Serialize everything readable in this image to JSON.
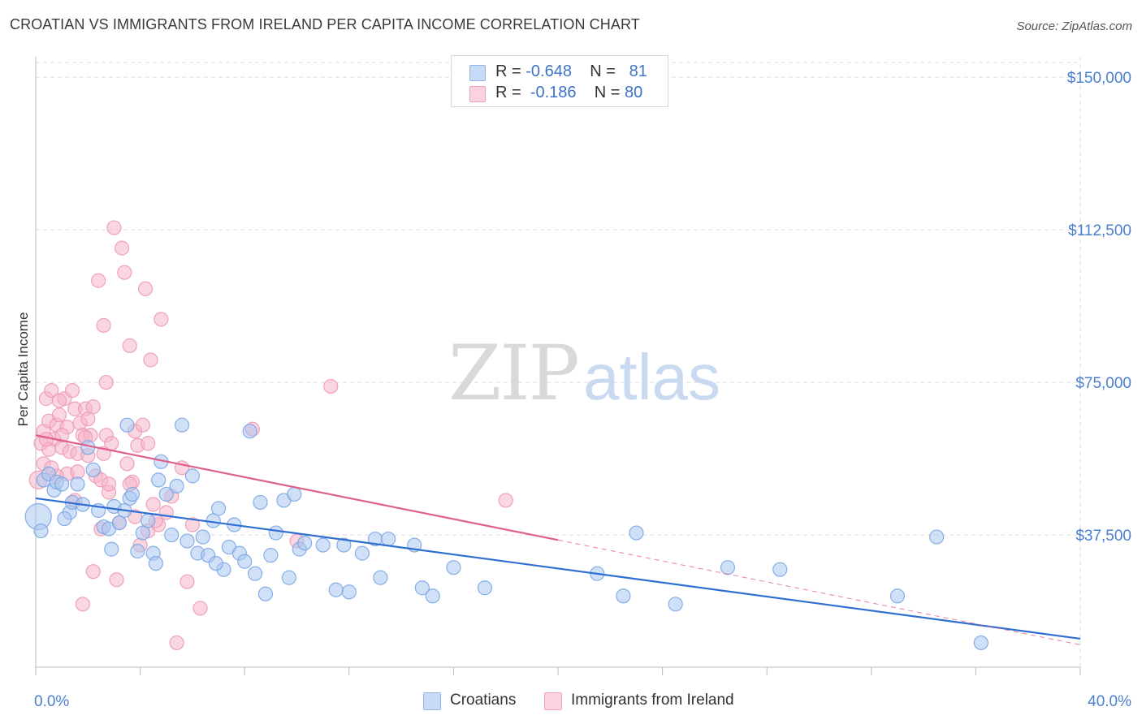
{
  "header": {
    "title": "CROATIAN VS IMMIGRANTS FROM IRELAND PER CAPITA INCOME CORRELATION CHART",
    "source": "Source: ZipAtlas.com"
  },
  "legend": {
    "rows": [
      {
        "r_label": "R = ",
        "r_value": "-0.648",
        "n_label": "N = ",
        "n_value": "81",
        "color": "#a9c6f0"
      },
      {
        "r_label": "R = ",
        "r_value": "-0.186",
        "n_label": "N = ",
        "n_value": "80",
        "color": "#f5b5c8"
      }
    ]
  },
  "bottom_legend": [
    {
      "label": "Croatians",
      "color": "#a9c6f0"
    },
    {
      "label": "Immigrants from Ireland",
      "color": "#f5b5c8"
    }
  ],
  "watermark": {
    "zip": "ZIP",
    "atlas": "atlas"
  },
  "chart_data": {
    "type": "scatter",
    "ylabel": "Per Capita Income",
    "xlim": [
      0,
      40
    ],
    "ylim": [
      5000,
      155000
    ],
    "x_tick_labels": [
      "0.0%",
      "40.0%"
    ],
    "y_ticks": [
      {
        "value": 37500,
        "label": "$37,500"
      },
      {
        "value": 75000,
        "label": "$75,000"
      },
      {
        "value": 112500,
        "label": "$112,500"
      },
      {
        "value": 150000,
        "label": "$150,000"
      }
    ],
    "grid": true,
    "colors": {
      "blue": "#4a86d8",
      "blue_line": "#2f6fd1",
      "pink": "#e98aa8",
      "pink_line": "#e0608b"
    },
    "series": [
      {
        "name": "Croatians",
        "color": "#a9c6f0",
        "trend": {
          "x": [
            0,
            40
          ],
          "y": [
            46500,
            12000
          ],
          "solid_to": 40
        },
        "points": [
          [
            0.1,
            42000
          ],
          [
            0.3,
            51000
          ],
          [
            0.5,
            52500
          ],
          [
            0.7,
            48500
          ],
          [
            0.8,
            50500
          ],
          [
            1.0,
            50000
          ],
          [
            1.3,
            43000
          ],
          [
            1.4,
            45500
          ],
          [
            1.6,
            50000
          ],
          [
            1.8,
            45000
          ],
          [
            2.0,
            59000
          ],
          [
            2.2,
            53500
          ],
          [
            2.4,
            43500
          ],
          [
            2.6,
            39500
          ],
          [
            2.8,
            39000
          ],
          [
            3.0,
            44500
          ],
          [
            3.2,
            40500
          ],
          [
            3.4,
            43500
          ],
          [
            3.5,
            64500
          ],
          [
            3.6,
            46500
          ],
          [
            3.7,
            47500
          ],
          [
            3.9,
            33500
          ],
          [
            4.1,
            38000
          ],
          [
            4.3,
            41000
          ],
          [
            4.5,
            33000
          ],
          [
            4.7,
            51000
          ],
          [
            4.8,
            55500
          ],
          [
            5.0,
            47500
          ],
          [
            5.2,
            37500
          ],
          [
            5.4,
            49500
          ],
          [
            5.6,
            64500
          ],
          [
            5.8,
            36000
          ],
          [
            6.0,
            52000
          ],
          [
            6.2,
            33000
          ],
          [
            6.4,
            37000
          ],
          [
            6.6,
            32500
          ],
          [
            6.8,
            41000
          ],
          [
            7.0,
            44000
          ],
          [
            7.2,
            29000
          ],
          [
            7.4,
            34500
          ],
          [
            7.6,
            40000
          ],
          [
            7.8,
            33000
          ],
          [
            8.0,
            31000
          ],
          [
            8.2,
            63000
          ],
          [
            8.4,
            28000
          ],
          [
            8.6,
            45500
          ],
          [
            8.8,
            23000
          ],
          [
            9.0,
            32500
          ],
          [
            9.2,
            38000
          ],
          [
            9.5,
            46000
          ],
          [
            9.7,
            27000
          ],
          [
            9.9,
            47500
          ],
          [
            10.1,
            34000
          ],
          [
            10.3,
            35500
          ],
          [
            11.0,
            35000
          ],
          [
            11.5,
            24000
          ],
          [
            11.8,
            35000
          ],
          [
            12.0,
            23500
          ],
          [
            12.5,
            33000
          ],
          [
            13.0,
            36500
          ],
          [
            13.2,
            27000
          ],
          [
            13.5,
            36500
          ],
          [
            14.5,
            35000
          ],
          [
            14.8,
            24500
          ],
          [
            15.2,
            22500
          ],
          [
            16.0,
            29500
          ],
          [
            17.2,
            24500
          ],
          [
            21.5,
            28000
          ],
          [
            22.5,
            22500
          ],
          [
            23.0,
            38000
          ],
          [
            24.5,
            20500
          ],
          [
            26.5,
            29500
          ],
          [
            28.5,
            29000
          ],
          [
            33.0,
            22500
          ],
          [
            34.5,
            37000
          ],
          [
            36.2,
            11000
          ],
          [
            0.2,
            38500
          ],
          [
            1.1,
            41500
          ],
          [
            2.9,
            34000
          ],
          [
            4.6,
            30500
          ],
          [
            6.9,
            30500
          ]
        ]
      },
      {
        "name": "Immigrants from Ireland",
        "color": "#f5b5c8",
        "trend": {
          "x": [
            0,
            40
          ],
          "y": [
            62000,
            10500
          ],
          "solid_to": 20
        },
        "points": [
          [
            0.1,
            51000
          ],
          [
            0.2,
            60000
          ],
          [
            0.3,
            63000
          ],
          [
            0.4,
            71000
          ],
          [
            0.5,
            65500
          ],
          [
            0.6,
            73000
          ],
          [
            0.7,
            61000
          ],
          [
            0.8,
            64500
          ],
          [
            0.9,
            67000
          ],
          [
            1.0,
            59000
          ],
          [
            1.1,
            71000
          ],
          [
            1.2,
            52500
          ],
          [
            1.3,
            58000
          ],
          [
            1.4,
            73000
          ],
          [
            1.5,
            68500
          ],
          [
            1.6,
            57500
          ],
          [
            1.7,
            65000
          ],
          [
            1.8,
            62000
          ],
          [
            1.9,
            68500
          ],
          [
            2.0,
            57000
          ],
          [
            2.1,
            62000
          ],
          [
            2.2,
            28500
          ],
          [
            2.3,
            52000
          ],
          [
            2.4,
            100000
          ],
          [
            2.5,
            51000
          ],
          [
            2.6,
            57500
          ],
          [
            2.7,
            62000
          ],
          [
            2.8,
            48000
          ],
          [
            2.9,
            60000
          ],
          [
            3.0,
            113000
          ],
          [
            3.1,
            26500
          ],
          [
            3.2,
            40500
          ],
          [
            3.3,
            108000
          ],
          [
            3.4,
            102000
          ],
          [
            3.5,
            55000
          ],
          [
            3.6,
            84000
          ],
          [
            3.7,
            50500
          ],
          [
            3.8,
            63000
          ],
          [
            3.9,
            59500
          ],
          [
            4.0,
            35000
          ],
          [
            4.1,
            64500
          ],
          [
            4.2,
            98000
          ],
          [
            4.3,
            38500
          ],
          [
            4.4,
            80500
          ],
          [
            4.5,
            45000
          ],
          [
            4.7,
            40000
          ],
          [
            4.8,
            90500
          ],
          [
            5.0,
            43000
          ],
          [
            5.2,
            47000
          ],
          [
            5.4,
            11000
          ],
          [
            5.6,
            54000
          ],
          [
            5.8,
            26000
          ],
          [
            6.0,
            40000
          ],
          [
            6.3,
            19500
          ],
          [
            1.8,
            20500
          ],
          [
            2.5,
            39000
          ],
          [
            2.6,
            89000
          ],
          [
            2.7,
            75000
          ],
          [
            1.5,
            46000
          ],
          [
            0.8,
            52000
          ],
          [
            0.3,
            55000
          ],
          [
            0.5,
            58500
          ],
          [
            1.2,
            64000
          ],
          [
            1.9,
            61500
          ],
          [
            3.6,
            50000
          ],
          [
            4.6,
            41000
          ],
          [
            8.3,
            63500
          ],
          [
            10.0,
            36000
          ],
          [
            11.3,
            74000
          ],
          [
            18.0,
            46000
          ],
          [
            0.9,
            70500
          ],
          [
            2.0,
            66000
          ],
          [
            2.2,
            69000
          ],
          [
            1.0,
            62000
          ],
          [
            0.4,
            61000
          ],
          [
            3.8,
            42000
          ],
          [
            1.6,
            53000
          ],
          [
            2.8,
            50000
          ],
          [
            4.3,
            60000
          ],
          [
            0.6,
            54000
          ]
        ]
      }
    ]
  }
}
